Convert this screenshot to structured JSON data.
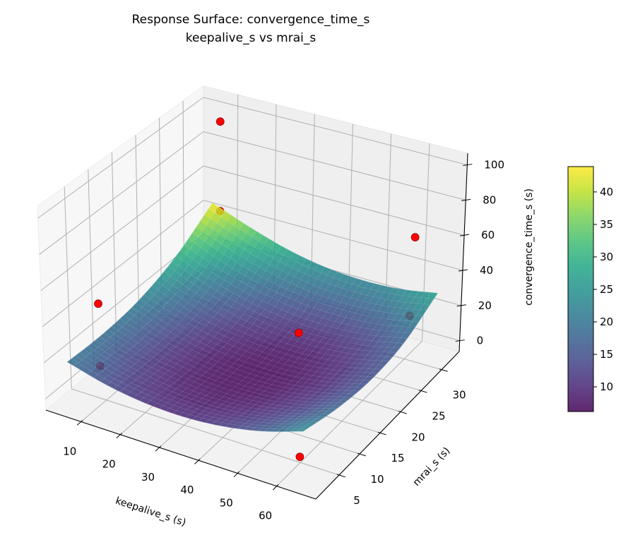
{
  "chart_data": {
    "type": "surface",
    "title": [
      "Response Surface: convergence_time_s",
      "keepalive_s vs mrai_s"
    ],
    "xlabel": "keepalive_s (s)",
    "ylabel": "mrai_s (s)",
    "zlabel": "convergence_time_s (s)",
    "xlim": [
      1,
      70
    ],
    "ylim": [
      -0.7,
      34.3
    ],
    "zlim": [
      -6.2,
      106.6
    ],
    "xticks": [
      10,
      20,
      30,
      40,
      50,
      60
    ],
    "yticks": [
      5,
      10,
      15,
      20,
      25,
      30
    ],
    "zticks": [
      0,
      20,
      40,
      60,
      80,
      100
    ],
    "grid": true,
    "view": {
      "elevation": 30,
      "azimuth": -60
    },
    "colormap": "viridis",
    "surface_alpha": 0.85,
    "surface": {
      "keepalive": [
        5,
        15,
        25,
        35,
        45,
        55,
        65
      ],
      "mrai": [
        1,
        9,
        17,
        25,
        33
      ],
      "z": [
        [
          19.8,
          14.1,
          11.0,
          10.4,
          12.4,
          16.9,
          24.0
        ],
        [
          19.3,
          12.7,
          8.7,
          7.2,
          8.3,
          11.9,
          18.1
        ],
        [
          21.9,
          14.4,
          9.4,
          7.1,
          7.2,
          10.0,
          15.2
        ],
        [
          29.6,
          21.2,
          15.3,
          12.0,
          11.3,
          13.1,
          17.5
        ],
        [
          43.5,
          35.3,
          28.5,
          24.3,
          22.7,
          23.6,
          27.1
        ]
      ]
    },
    "scatter": {
      "color": "#ff0000",
      "edge_color": "#800000",
      "points": [
        {
          "keepalive": 7,
          "mrai": 33,
          "convergence_time": 92
        },
        {
          "keepalive": 7,
          "mrai": 33,
          "convergence_time": 40
        },
        {
          "keepalive": 5,
          "mrai": 8,
          "convergence_time": 38
        },
        {
          "keepalive": 5,
          "mrai": 8,
          "convergence_time": 3
        },
        {
          "keepalive": 43,
          "mrai": 20,
          "convergence_time": 21
        },
        {
          "keepalive": 64,
          "mrai": 28,
          "convergence_time": 70
        },
        {
          "keepalive": 60,
          "mrai": 31,
          "convergence_time": 16
        },
        {
          "keepalive": 62,
          "mrai": 3,
          "convergence_time": 3
        }
      ]
    },
    "colorbar": {
      "range": [
        6.2,
        43.9
      ],
      "ticks": [
        10,
        15,
        20,
        25,
        30,
        35,
        40
      ]
    }
  }
}
